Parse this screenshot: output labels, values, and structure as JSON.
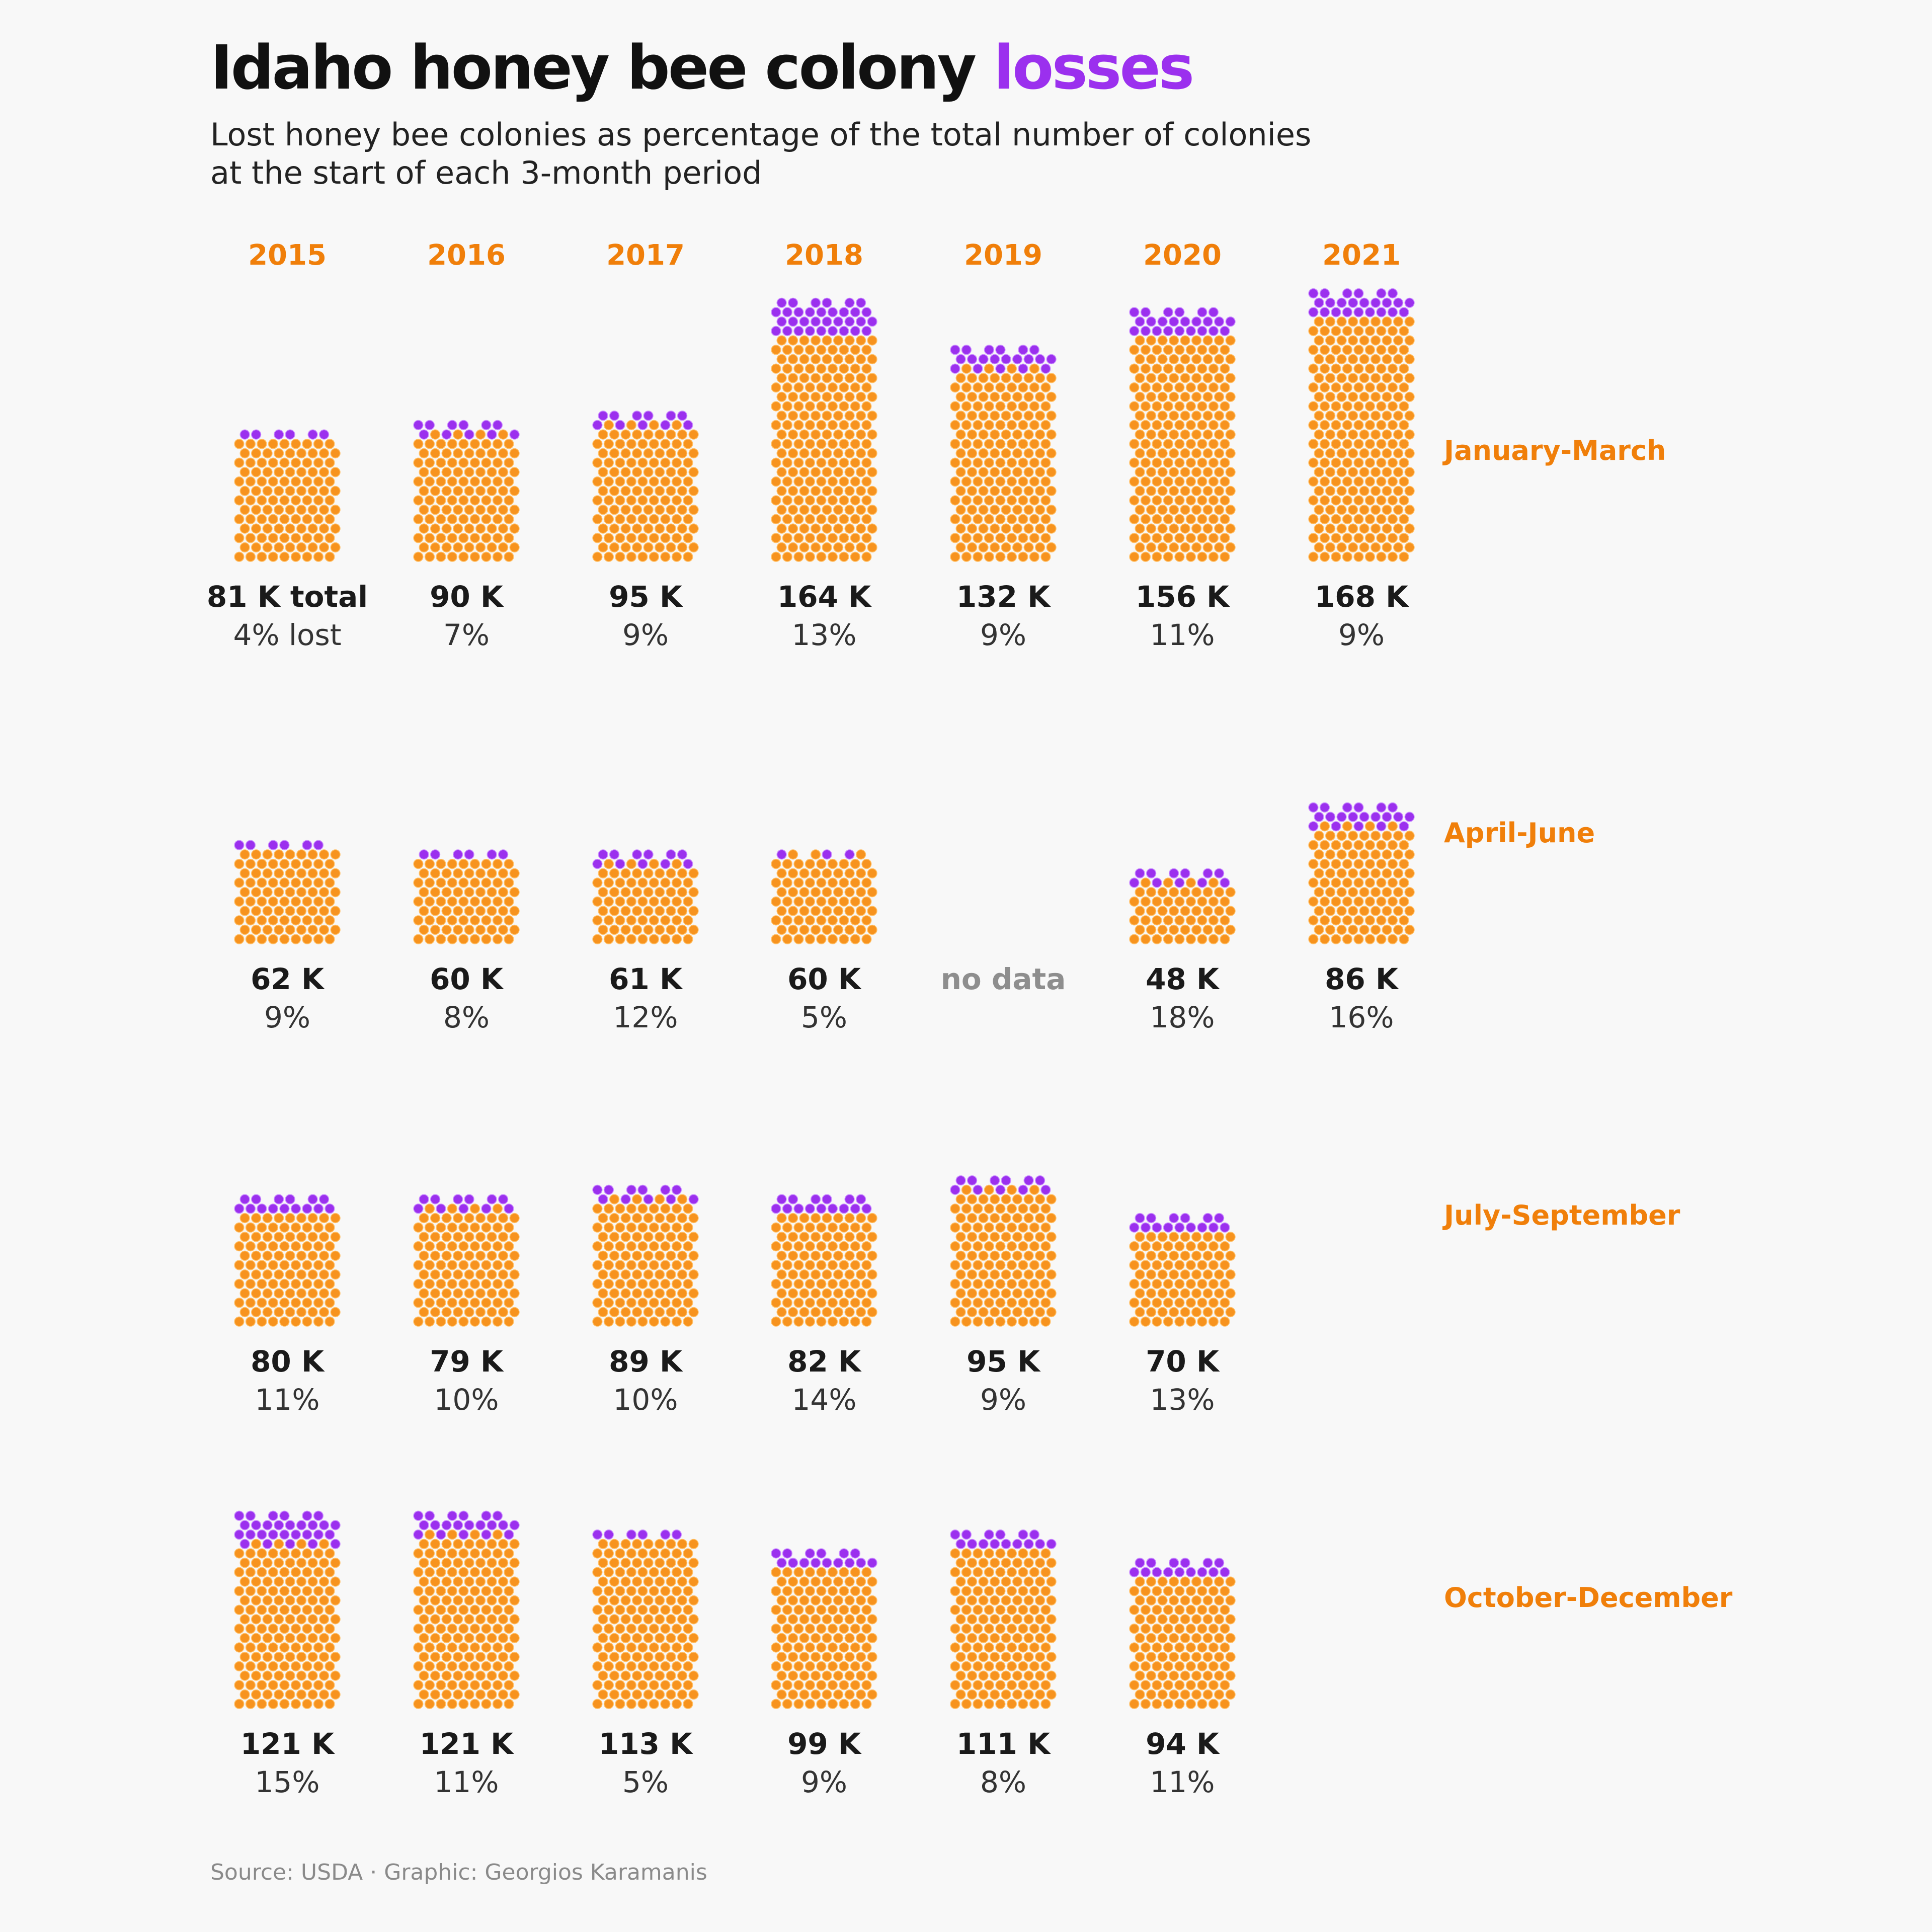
{
  "title": {
    "main": "Idaho honey bee colony",
    "accent": "losses"
  },
  "subtitle": {
    "line1": "Lost honey bee colonies as percentage of the total number of colonies",
    "line2": "at the start of each 3-month period"
  },
  "caption": "Source: USDA · Graphic: Georgios Karamanis",
  "colors": {
    "background": "#f8f8f8",
    "remaining": "#f7931e",
    "remaining_stroke": "#ffbf66",
    "lost": "#9b30ee",
    "lost_stroke": "#c98cff",
    "labels": "#f07f0a",
    "no_data": "#8e8e8e"
  },
  "chart_data": {
    "type": "waffle-bar",
    "years": [
      "2015",
      "2016",
      "2017",
      "2018",
      "2019",
      "2020",
      "2021"
    ],
    "periods": [
      {
        "name": "January-March",
        "cells": [
          {
            "year": "2015",
            "total": 81,
            "total_label": "81 K total",
            "lost_pct": 4,
            "pct_label": "4% lost"
          },
          {
            "year": "2016",
            "total": 90,
            "total_label": "90 K",
            "lost_pct": 7,
            "pct_label": "7%"
          },
          {
            "year": "2017",
            "total": 95,
            "total_label": "95 K",
            "lost_pct": 9,
            "pct_label": "9%"
          },
          {
            "year": "2018",
            "total": 164,
            "total_label": "164 K",
            "lost_pct": 13,
            "pct_label": "13%"
          },
          {
            "year": "2019",
            "total": 132,
            "total_label": "132 K",
            "lost_pct": 9,
            "pct_label": "9%"
          },
          {
            "year": "2020",
            "total": 156,
            "total_label": "156 K",
            "lost_pct": 11,
            "pct_label": "11%"
          },
          {
            "year": "2021",
            "total": 168,
            "total_label": "168 K",
            "lost_pct": 9,
            "pct_label": "9%"
          }
        ]
      },
      {
        "name": "April-June",
        "cells": [
          {
            "year": "2015",
            "total": 62,
            "total_label": "62 K",
            "lost_pct": 9,
            "pct_label": "9%"
          },
          {
            "year": "2016",
            "total": 60,
            "total_label": "60 K",
            "lost_pct": 8,
            "pct_label": "8%"
          },
          {
            "year": "2017",
            "total": 61,
            "total_label": "61 K",
            "lost_pct": 12,
            "pct_label": "12%"
          },
          {
            "year": "2018",
            "total": 60,
            "total_label": "60 K",
            "lost_pct": 5,
            "pct_label": "5%"
          },
          {
            "year": "2019",
            "no_data": true,
            "no_data_label": "no data"
          },
          {
            "year": "2020",
            "total": 48,
            "total_label": "48 K",
            "lost_pct": 18,
            "pct_label": "18%"
          },
          {
            "year": "2021",
            "total": 86,
            "total_label": "86 K",
            "lost_pct": 16,
            "pct_label": "16%"
          }
        ]
      },
      {
        "name": "July-September",
        "cells": [
          {
            "year": "2015",
            "total": 80,
            "total_label": "80 K",
            "lost_pct": 11,
            "pct_label": "11%"
          },
          {
            "year": "2016",
            "total": 79,
            "total_label": "79 K",
            "lost_pct": 10,
            "pct_label": "10%"
          },
          {
            "year": "2017",
            "total": 89,
            "total_label": "89 K",
            "lost_pct": 10,
            "pct_label": "10%"
          },
          {
            "year": "2018",
            "total": 82,
            "total_label": "82 K",
            "lost_pct": 14,
            "pct_label": "14%"
          },
          {
            "year": "2019",
            "total": 95,
            "total_label": "95 K",
            "lost_pct": 9,
            "pct_label": "9%"
          },
          {
            "year": "2020",
            "total": 70,
            "total_label": "70 K",
            "lost_pct": 13,
            "pct_label": "13%"
          }
        ]
      },
      {
        "name": "October-December",
        "cells": [
          {
            "year": "2015",
            "total": 121,
            "total_label": "121 K",
            "lost_pct": 15,
            "pct_label": "15%"
          },
          {
            "year": "2016",
            "total": 121,
            "total_label": "121 K",
            "lost_pct": 11,
            "pct_label": "11%"
          },
          {
            "year": "2017",
            "total": 113,
            "total_label": "113 K",
            "lost_pct": 5,
            "pct_label": "5%"
          },
          {
            "year": "2018",
            "total": 99,
            "total_label": "99 K",
            "lost_pct": 9,
            "pct_label": "9%"
          },
          {
            "year": "2019",
            "total": 111,
            "total_label": "111 K",
            "lost_pct": 8,
            "pct_label": "8%"
          },
          {
            "year": "2020",
            "total": 94,
            "total_label": "94 K",
            "lost_pct": 11,
            "pct_label": "11%"
          }
        ]
      }
    ]
  }
}
